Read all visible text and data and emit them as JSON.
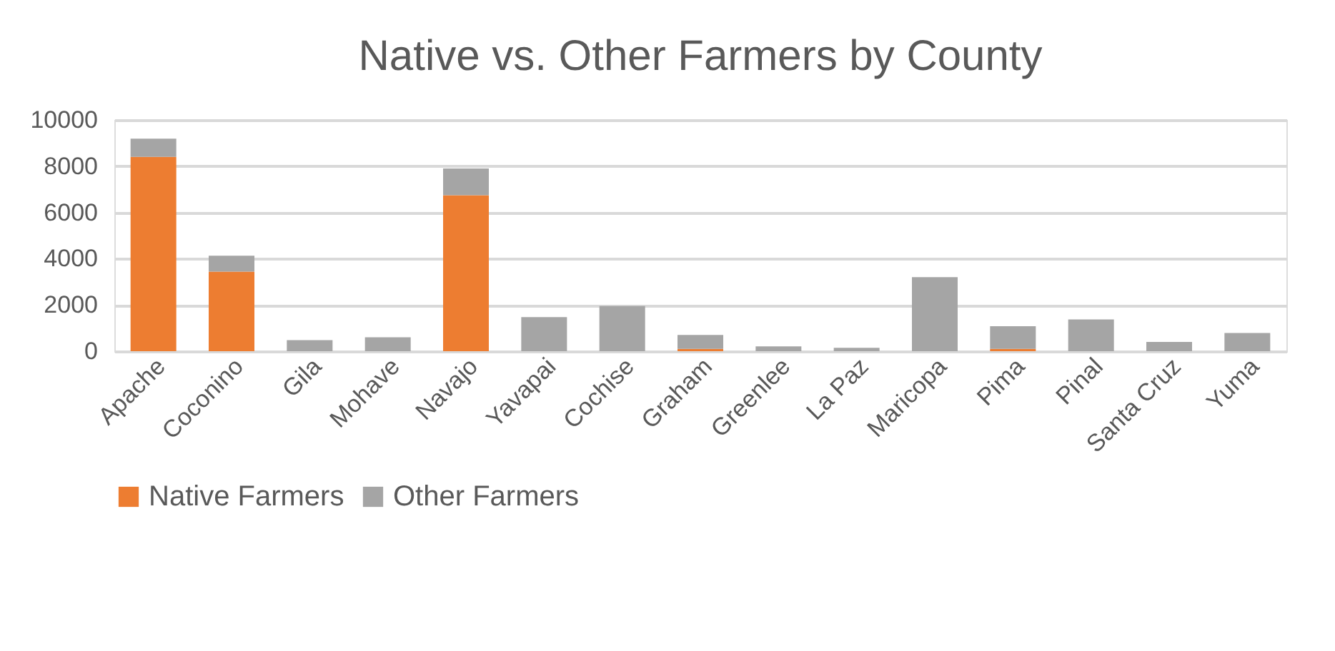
{
  "chart_data": {
    "type": "bar",
    "stacked": true,
    "title": "Native vs. Other Farmers by County",
    "categories": [
      "Apache",
      "Coconino",
      "Gila",
      "Mohave",
      "Navajo",
      "Yavapai",
      "Cochise",
      "Graham",
      "Greenlee",
      "La Paz",
      "Maricopa",
      "Pima",
      "Pinal",
      "Santa Cruz",
      "Yuma"
    ],
    "series": [
      {
        "name": "Native Farmers",
        "color": "#ed7d31",
        "values": [
          8400,
          3440,
          null,
          null,
          6740,
          null,
          null,
          100,
          null,
          null,
          null,
          100,
          null,
          null,
          null
        ]
      },
      {
        "name": "Other Farmers",
        "color": "#a5a5a5",
        "values": [
          790,
          690,
          480,
          600,
          1160,
          1470,
          1950,
          600,
          210,
          150,
          3200,
          980,
          1370,
          400,
          790
        ]
      }
    ],
    "ylim": [
      0,
      10000
    ],
    "yticks": [
      0,
      2000,
      4000,
      6000,
      8000,
      10000
    ],
    "grid": "y",
    "legend": "bottom"
  }
}
